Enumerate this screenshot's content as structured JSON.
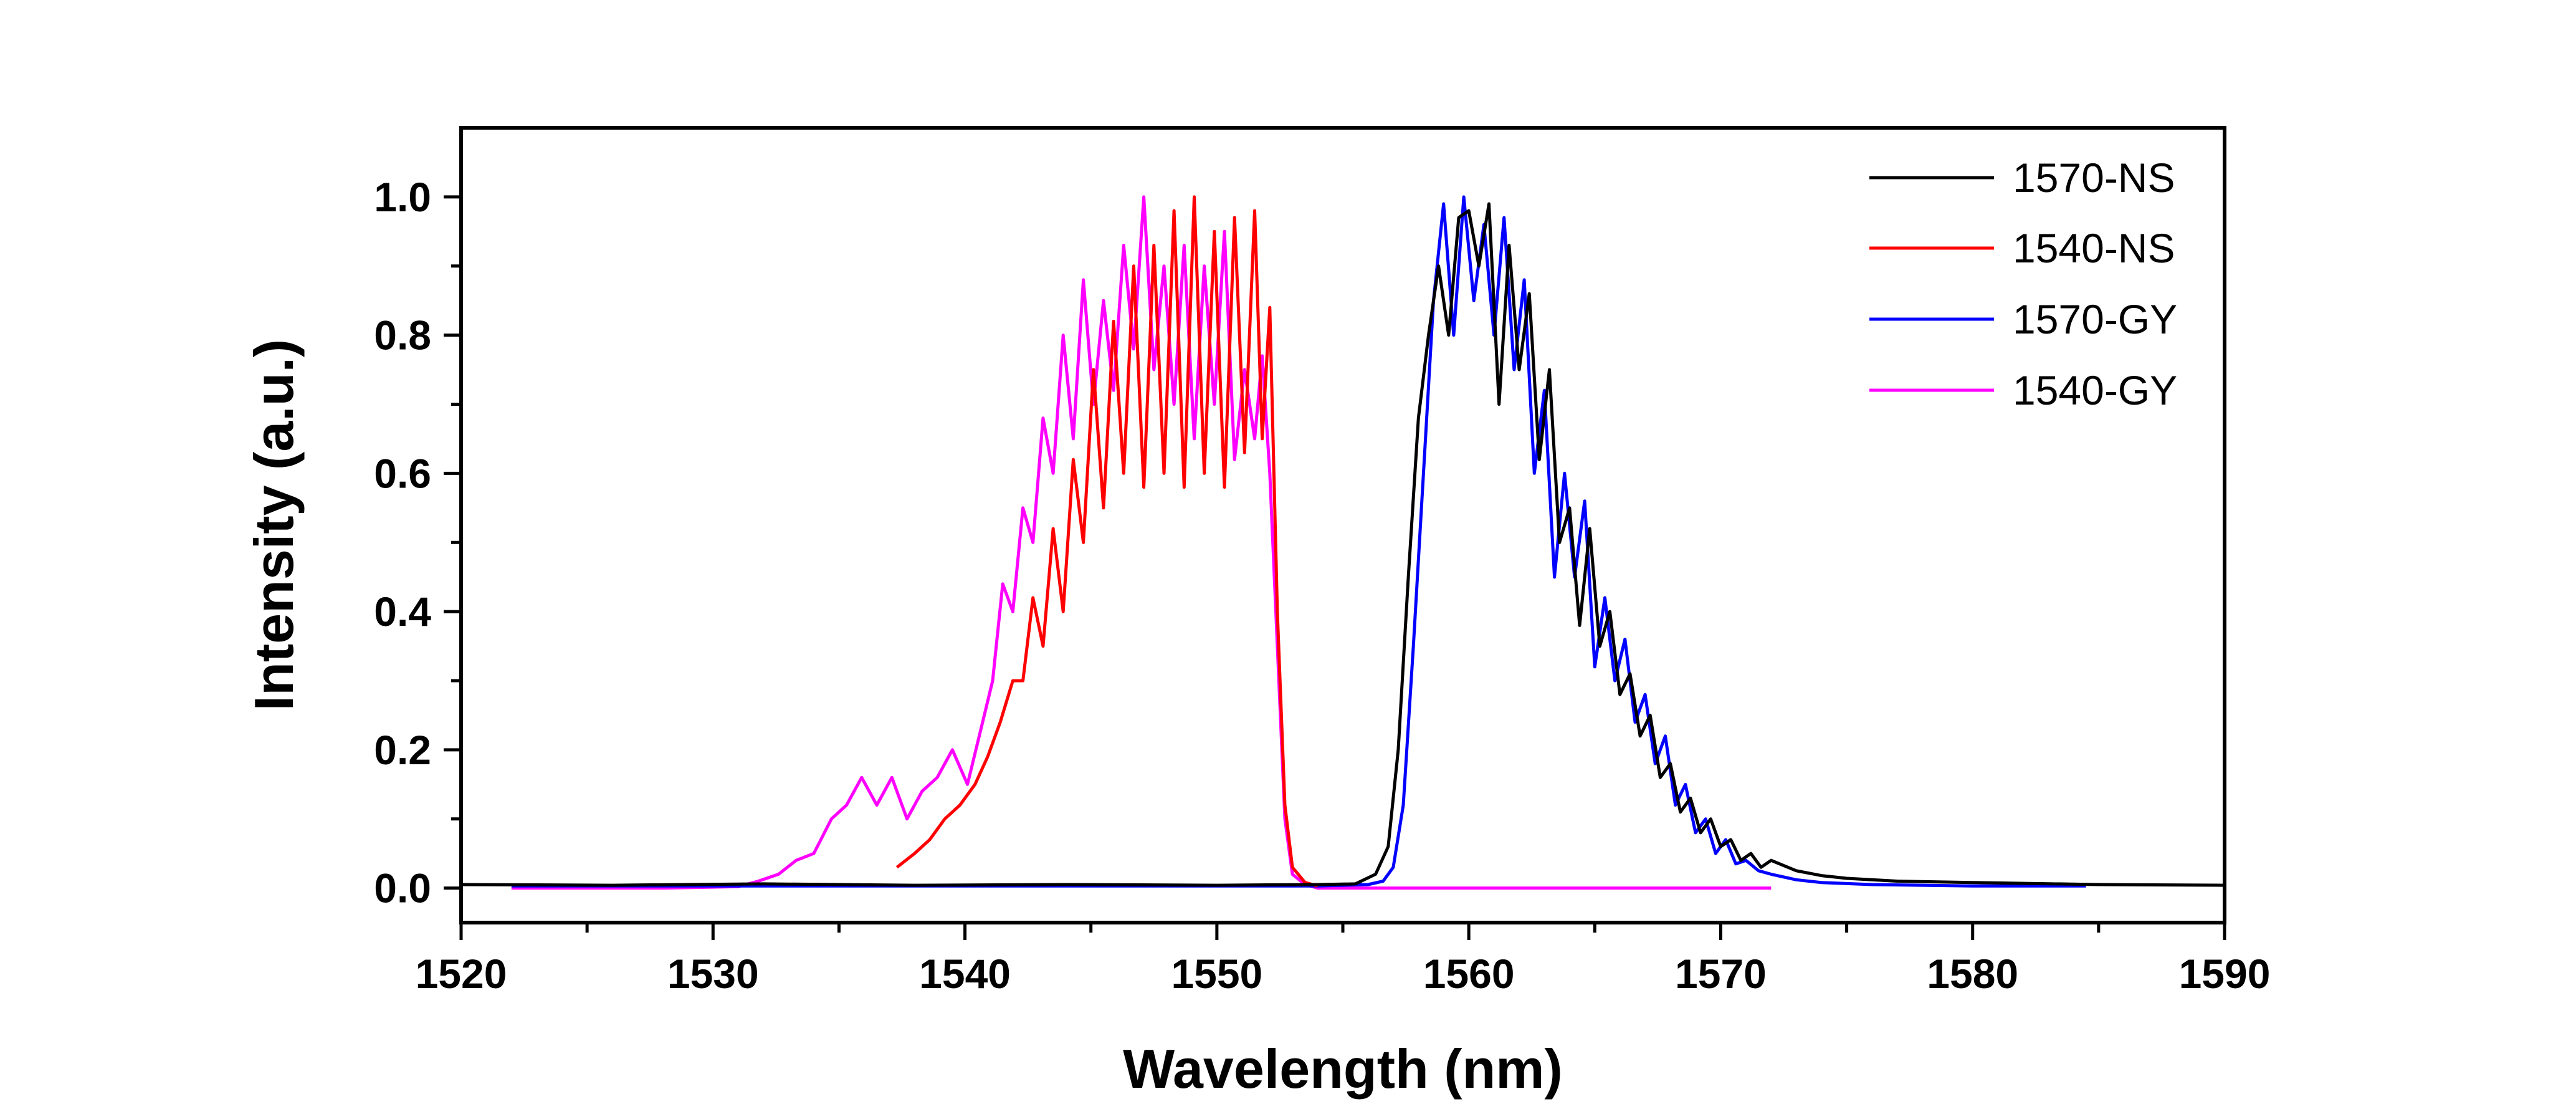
{
  "chart_data": {
    "type": "line",
    "title": "",
    "xlabel": "Wavelength (nm)",
    "ylabel": "Intensity (a.u.)",
    "xlim": [
      1520,
      1590
    ],
    "ylim": [
      -0.05,
      1.1
    ],
    "xticks": [
      1520,
      1530,
      1540,
      1550,
      1560,
      1570,
      1580,
      1590
    ],
    "xtick_labels": [
      "1520",
      "1530",
      "1540",
      "1550",
      "1560",
      "1570",
      "1580",
      "1590"
    ],
    "yticks": [
      0.0,
      0.2,
      0.4,
      0.6,
      0.8,
      1.0
    ],
    "ytick_labels": [
      "0.0",
      "0.2",
      "0.4",
      "0.6",
      "0.8",
      "1.0"
    ],
    "grid": false,
    "legend_position": "top-right",
    "series": [
      {
        "name": "1570-NS",
        "color": "#000000",
        "x": [
          1520,
          1526,
          1532,
          1538,
          1544,
          1550,
          1554,
          1555.5,
          1556.3,
          1556.8,
          1557.2,
          1557.6,
          1558.0,
          1558.4,
          1558.8,
          1559.2,
          1559.6,
          1560.0,
          1560.4,
          1560.8,
          1561.2,
          1561.6,
          1562.0,
          1562.4,
          1562.8,
          1563.2,
          1563.6,
          1564.0,
          1564.4,
          1564.8,
          1565.2,
          1565.6,
          1566.0,
          1566.4,
          1566.8,
          1567.2,
          1567.6,
          1568.0,
          1568.4,
          1568.8,
          1569.2,
          1569.6,
          1570.0,
          1570.4,
          1570.8,
          1571.2,
          1571.6,
          1572.0,
          1573.0,
          1574.0,
          1575.0,
          1577.0,
          1580.0,
          1585.0,
          1590.0
        ],
        "y": [
          0.005,
          0.004,
          0.006,
          0.004,
          0.005,
          0.004,
          0.005,
          0.006,
          0.02,
          0.06,
          0.2,
          0.45,
          0.68,
          0.8,
          0.9,
          0.8,
          0.97,
          0.98,
          0.9,
          0.99,
          0.7,
          0.93,
          0.75,
          0.86,
          0.62,
          0.75,
          0.5,
          0.55,
          0.38,
          0.52,
          0.35,
          0.4,
          0.28,
          0.31,
          0.22,
          0.25,
          0.16,
          0.18,
          0.11,
          0.13,
          0.08,
          0.1,
          0.06,
          0.07,
          0.04,
          0.05,
          0.03,
          0.04,
          0.025,
          0.018,
          0.014,
          0.01,
          0.008,
          0.005,
          0.004
        ]
      },
      {
        "name": "1540-NS",
        "color": "#ff0000",
        "x": [
          1537.3,
          1538.0,
          1538.6,
          1539.2,
          1539.8,
          1540.4,
          1540.9,
          1541.4,
          1541.9,
          1542.3,
          1542.7,
          1543.1,
          1543.5,
          1543.9,
          1544.3,
          1544.7,
          1545.1,
          1545.5,
          1545.9,
          1546.3,
          1546.7,
          1547.1,
          1547.5,
          1547.9,
          1548.3,
          1548.7,
          1549.1,
          1549.5,
          1549.9,
          1550.3,
          1550.7,
          1551.1,
          1551.5,
          1551.8,
          1552.1,
          1552.4,
          1552.7,
          1553.0,
          1553.5,
          1554.0
        ],
        "y": [
          0.03,
          0.05,
          0.07,
          0.1,
          0.12,
          0.15,
          0.19,
          0.24,
          0.3,
          0.3,
          0.42,
          0.35,
          0.52,
          0.4,
          0.62,
          0.5,
          0.75,
          0.55,
          0.82,
          0.6,
          0.9,
          0.58,
          0.93,
          0.6,
          0.98,
          0.58,
          1.0,
          0.6,
          0.95,
          0.58,
          0.97,
          0.63,
          0.98,
          0.65,
          0.84,
          0.4,
          0.12,
          0.03,
          0.008,
          0.003
        ]
      },
      {
        "name": "1570-GY",
        "color": "#0000ff",
        "x": [
          1522,
          1530,
          1540,
          1550,
          1554,
          1556.0,
          1556.6,
          1557.0,
          1557.4,
          1557.8,
          1558.2,
          1558.6,
          1559.0,
          1559.4,
          1559.8,
          1560.2,
          1560.6,
          1561.0,
          1561.4,
          1561.8,
          1562.2,
          1562.6,
          1563.0,
          1563.4,
          1563.8,
          1564.2,
          1564.6,
          1565.0,
          1565.4,
          1565.8,
          1566.2,
          1566.6,
          1567.0,
          1567.4,
          1567.8,
          1568.2,
          1568.6,
          1569.0,
          1569.4,
          1569.8,
          1570.2,
          1570.6,
          1571.0,
          1571.5,
          1572.0,
          1573.0,
          1574.0,
          1576.0,
          1580.0,
          1584.5
        ],
        "y": [
          0.003,
          0.003,
          0.003,
          0.003,
          0.003,
          0.005,
          0.01,
          0.03,
          0.12,
          0.35,
          0.6,
          0.85,
          0.99,
          0.8,
          1.0,
          0.85,
          0.96,
          0.8,
          0.97,
          0.75,
          0.88,
          0.6,
          0.72,
          0.45,
          0.6,
          0.45,
          0.56,
          0.32,
          0.42,
          0.3,
          0.36,
          0.24,
          0.28,
          0.18,
          0.22,
          0.12,
          0.15,
          0.08,
          0.1,
          0.05,
          0.07,
          0.035,
          0.04,
          0.025,
          0.02,
          0.012,
          0.008,
          0.005,
          0.003,
          0.003
        ]
      },
      {
        "name": "1540-GY",
        "color": "#ff00ff",
        "x": [
          1522,
          1528,
          1531,
          1531.8,
          1532.6,
          1533.3,
          1534.0,
          1534.7,
          1535.3,
          1535.9,
          1536.5,
          1537.1,
          1537.7,
          1538.3,
          1538.9,
          1539.5,
          1540.1,
          1540.7,
          1541.1,
          1541.5,
          1541.9,
          1542.3,
          1542.7,
          1543.1,
          1543.5,
          1543.9,
          1544.3,
          1544.7,
          1545.1,
          1545.5,
          1545.9,
          1546.3,
          1546.7,
          1547.1,
          1547.5,
          1547.9,
          1548.3,
          1548.7,
          1549.1,
          1549.5,
          1549.9,
          1550.3,
          1550.7,
          1551.1,
          1551.5,
          1551.8,
          1552.1,
          1552.4,
          1552.7,
          1553.0,
          1553.5,
          1554,
          1560,
          1566,
          1572
        ],
        "y": [
          0.0,
          0.0,
          0.002,
          0.01,
          0.02,
          0.04,
          0.05,
          0.1,
          0.12,
          0.16,
          0.12,
          0.16,
          0.1,
          0.14,
          0.16,
          0.2,
          0.15,
          0.24,
          0.3,
          0.44,
          0.4,
          0.55,
          0.5,
          0.68,
          0.6,
          0.8,
          0.65,
          0.88,
          0.7,
          0.85,
          0.72,
          0.93,
          0.78,
          1.0,
          0.75,
          0.9,
          0.7,
          0.93,
          0.65,
          0.9,
          0.7,
          0.95,
          0.62,
          0.75,
          0.65,
          0.77,
          0.6,
          0.35,
          0.1,
          0.02,
          0.005,
          0.0,
          0.0,
          0.0,
          0.0
        ]
      }
    ]
  }
}
